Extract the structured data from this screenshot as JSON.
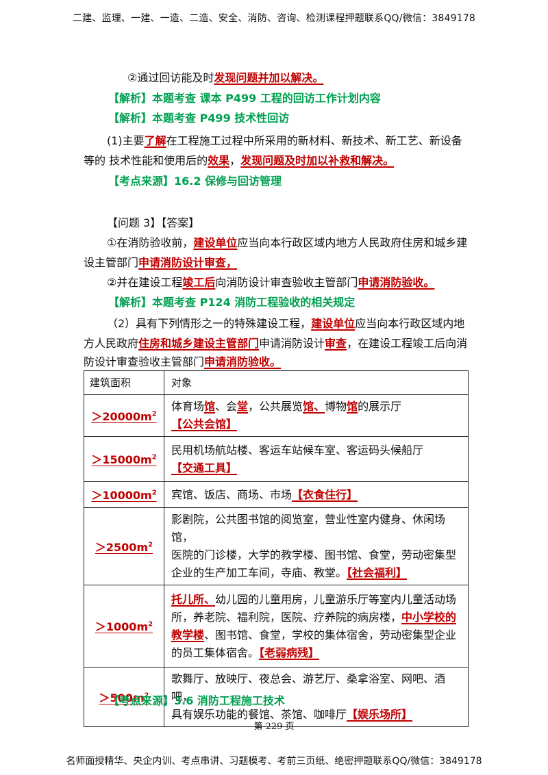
{
  "header": "二建、监理、一建、一造、二造、安全、消防、咨询、检测课程押题联系QQ/微信：3849178",
  "footer": "名师面授精华、央企内训、考点串讲、习题模考、考前三页纸、绝密押题联系QQ/微信：3849178",
  "page_number": "第 229 页",
  "lines": {
    "l1a": "②通过回访能及时",
    "l1b": "发现问题并加以解决。",
    "l2": "【解析】本题考查 课本 P499 工程的回访工作计划内容",
    "l3": "【解析】本题考查 P499 技术性回访",
    "l4a": "(1)主要",
    "l4b": "了解",
    "l4c": "在工程施工过程中所采用的新材料、新技术、新工艺、新设备",
    "l5a": "等的 技术性能和使用后的",
    "l5b": "效果",
    "l5c": "，",
    "l5d": "发现问题及时加以补救和解决。",
    "l6": "【考点来源】16.2 保修与回访管理",
    "l7": "【问题 3】【答案】",
    "l8a": "①在消防验收前，",
    "l8b": "建设单位",
    "l8c": "应当向本行政区域内地方人民政府住房和城乡建",
    "l9a": "设主管部门",
    "l9b": "申请消防设计审查，",
    "l10a": "②并在建设工程",
    "l10b": "竣工后",
    "l10c": "向消防设计审查验收主管部门",
    "l10d": "申请消防验收。",
    "l11": "【解析】本题考查 P124 消防工程验收的相关规定",
    "l12a": "（2）具有下列情形之一的特殊建设工程，",
    "l12b": "建设单位",
    "l12c": "应当向本行政区域内地",
    "l13a": "方人民政府",
    "l13b": "住房和城乡建设主管部门",
    "l13c": "申请消防设计",
    "l13d": "审查",
    "l13e": "，在建设工程竣工后向消",
    "l14a": "防设计审查验收主管部门",
    "l14b": "申请消防验收。",
    "l15": "【考点来源】3.6 消防工程施工技术"
  },
  "table": {
    "headers": [
      "建筑面积",
      "对象"
    ],
    "rows": [
      {
        "area": "＞20000m",
        "sup": "2",
        "parts": [
          {
            "t": "体育场",
            "r": false
          },
          {
            "t": "馆",
            "r": true
          },
          {
            "t": "、会",
            "r": false
          },
          {
            "t": "堂",
            "r": true
          },
          {
            "t": "，公共展览",
            "r": false
          },
          {
            "t": "馆、",
            "r": true
          },
          {
            "t": "博物",
            "r": false
          },
          {
            "t": "馆",
            "r": true
          },
          {
            "t": "的展示厅",
            "r": false
          },
          {
            "t": "【公共会馆】",
            "r": true
          }
        ]
      },
      {
        "area": "＞15000m",
        "sup": "2",
        "parts": [
          {
            "t": "民用机场航站楼、客运车站候车室、客运码头候船厅",
            "r": false
          },
          {
            "br": true
          },
          {
            "t": "【交通工具】",
            "r": true
          }
        ]
      },
      {
        "area": "＞10000m",
        "sup": "2",
        "parts": [
          {
            "t": "宾馆、饭店、商场、市场",
            "r": false
          },
          {
            "t": "【衣食住行】",
            "r": true
          }
        ]
      },
      {
        "area": "＞2500m",
        "sup": "2",
        "parts": [
          {
            "t": "影剧院，公共图书馆的阅览室，营业性室内健身、休闲场馆，",
            "r": false
          },
          {
            "br": true
          },
          {
            "t": "医院的门诊楼，大学的教学楼、图书馆、食堂，劳动密集型",
            "r": false
          },
          {
            "br": true
          },
          {
            "t": "企业的生产加工车间，寺庙、教堂。",
            "r": false
          },
          {
            "t": "【社会福利】",
            "r": true
          }
        ]
      },
      {
        "area": "＞1000m",
        "sup": "2",
        "parts": [
          {
            "t": "托儿所、",
            "r": true
          },
          {
            "t": "幼儿园的儿童用房，儿童游乐厅等室内儿童活动场",
            "r": false
          },
          {
            "br": true
          },
          {
            "t": "所，养老院、福利院，医院、疗养院的病房楼，",
            "r": false
          },
          {
            "t": "中小学校的",
            "r": true
          },
          {
            "br": true
          },
          {
            "t": "教学楼",
            "r": true
          },
          {
            "t": "、图书馆、食堂，学校的集体宿舍，劳动密集型企业",
            "r": false
          },
          {
            "br": true
          },
          {
            "t": "的员工集体宿舍。",
            "r": false
          },
          {
            "t": "【老弱病残】",
            "r": true
          }
        ]
      },
      {
        "area": "＞500m",
        "sup": "2",
        "parts": [
          {
            "t": "歌舞厅、放映厅、夜总会、游艺厅、桑拿浴室、网吧、酒吧，",
            "r": false
          },
          {
            "br": true
          },
          {
            "t": "具有娱乐功能的餐馆、茶馆、咖啡厅",
            "r": false
          },
          {
            "t": "【娱乐场所】",
            "r": true
          }
        ]
      }
    ]
  }
}
